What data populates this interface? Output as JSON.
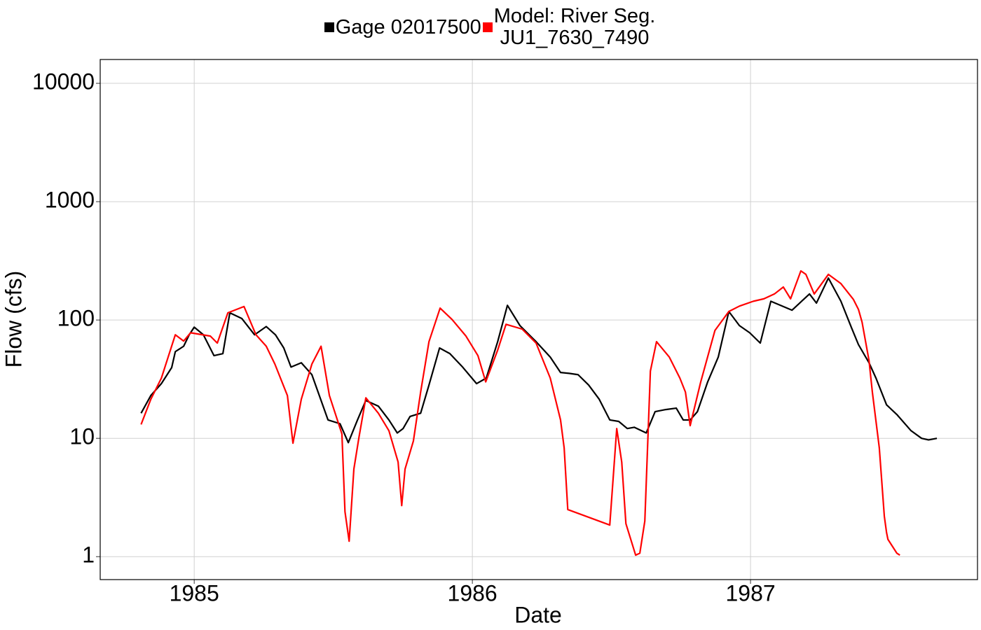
{
  "chart_data": {
    "type": "line",
    "x_label": "Date",
    "y_label": "Flow (cfs)",
    "log_y": true,
    "grid": true,
    "legend": "top",
    "xlim": [
      1984.662,
      1987.816
    ],
    "xticks": [
      1985,
      1986,
      1987
    ],
    "ylim": [
      0.64,
      15900
    ],
    "yticks": [
      1,
      10,
      100,
      1000,
      10000
    ],
    "series": [
      {
        "name": "Gage 02017500",
        "color": "#000000",
        "x": [
          1984.809,
          1984.844,
          1984.882,
          1984.919,
          1984.932,
          1984.962,
          1984.982,
          1985.0,
          1985.033,
          1985.071,
          1985.103,
          1985.128,
          1985.171,
          1985.217,
          1985.259,
          1985.292,
          1985.322,
          1985.348,
          1985.385,
          1985.423,
          1985.481,
          1985.524,
          1985.554,
          1985.587,
          1985.617,
          1985.662,
          1985.7,
          1985.73,
          1985.751,
          1985.776,
          1985.814,
          1985.844,
          1985.882,
          1985.919,
          1985.965,
          1986.015,
          1986.05,
          1986.091,
          1986.126,
          1986.171,
          1986.229,
          1986.28,
          1986.317,
          1986.348,
          1986.38,
          1986.418,
          1986.456,
          1986.494,
          1986.526,
          1986.557,
          1986.582,
          1986.625,
          1986.657,
          1986.695,
          1986.733,
          1986.758,
          1986.783,
          1986.809,
          1986.846,
          1986.884,
          1986.922,
          1986.96,
          1986.997,
          1987.035,
          1987.073,
          1987.149,
          1987.212,
          1987.237,
          1987.28,
          1987.325,
          1987.363,
          1987.388,
          1987.426,
          1987.451,
          1987.489,
          1987.526,
          1987.577,
          1987.615,
          1987.64,
          1987.67
        ],
        "values": [
          16.3,
          23,
          29,
          39.6,
          54,
          60,
          75,
          87,
          75,
          50,
          52,
          115,
          103,
          75,
          88,
          75,
          58,
          40,
          43.5,
          34.5,
          14.3,
          13.3,
          9.2,
          14.3,
          20.9,
          18.7,
          14.3,
          11.1,
          12.1,
          15.3,
          16.3,
          28.2,
          58,
          52,
          40,
          29,
          32.3,
          65.6,
          133,
          89.7,
          65.6,
          48.6,
          36,
          35.4,
          34.5,
          28.2,
          21.4,
          14.3,
          13.9,
          12.1,
          12.4,
          11.1,
          16.8,
          17.5,
          18,
          14.3,
          14.3,
          16.8,
          30,
          48.6,
          118,
          89.7,
          78,
          63.8,
          144,
          121,
          166,
          139,
          226,
          144,
          86,
          62,
          43.5,
          32.3,
          19.2,
          15.9,
          11.6,
          10,
          9.7,
          10
        ]
      },
      {
        "name": "Model: River Seg.\nJU1_7630_7490",
        "color": "#ff0000",
        "x": [
          1984.809,
          1984.844,
          1984.882,
          1984.932,
          1984.962,
          1984.987,
          1985.058,
          1985.083,
          1985.121,
          1985.179,
          1985.222,
          1985.259,
          1985.29,
          1985.335,
          1985.355,
          1985.385,
          1985.423,
          1985.456,
          1985.486,
          1985.531,
          1985.542,
          1985.557,
          1985.574,
          1985.592,
          1985.617,
          1985.662,
          1985.7,
          1985.733,
          1985.746,
          1985.758,
          1985.788,
          1985.814,
          1985.844,
          1985.884,
          1985.927,
          1985.977,
          1986.02,
          1986.048,
          1986.091,
          1986.121,
          1986.179,
          1986.229,
          1986.28,
          1986.317,
          1986.33,
          1986.343,
          1986.494,
          1986.519,
          1986.537,
          1986.552,
          1986.587,
          1986.602,
          1986.62,
          1986.64,
          1986.662,
          1986.708,
          1986.746,
          1986.766,
          1986.783,
          1986.821,
          1986.872,
          1986.922,
          1986.96,
          1987.01,
          1987.048,
          1987.086,
          1987.118,
          1987.144,
          1987.181,
          1987.199,
          1987.229,
          1987.28,
          1987.325,
          1987.37,
          1987.388,
          1987.401,
          1987.426,
          1987.438,
          1987.463,
          1987.481,
          1987.489,
          1987.494,
          1987.526,
          1987.537
        ],
        "values": [
          13.1,
          21.4,
          32.3,
          75,
          66.4,
          78,
          73.1,
          63.8,
          115,
          130,
          75,
          60,
          42.4,
          23,
          9.1,
          21.4,
          42.4,
          60,
          23,
          10.9,
          2.4,
          1.35,
          5.5,
          10.1,
          22,
          16.3,
          11.6,
          6.3,
          2.7,
          5.5,
          9.5,
          24.6,
          65.6,
          126,
          101,
          73.1,
          50,
          30,
          55.7,
          92,
          83.8,
          63.8,
          32.3,
          14.3,
          8.3,
          2.5,
          1.85,
          12.1,
          6.3,
          1.9,
          1.03,
          1.07,
          2.0,
          37,
          65.6,
          48.6,
          32.3,
          24.6,
          12.8,
          30,
          81.5,
          118,
          131,
          144,
          151,
          166,
          190,
          151,
          260,
          243,
          166,
          243,
          203,
          149,
          123,
          96,
          45.4,
          24.6,
          8.3,
          2.2,
          1.6,
          1.4,
          1.07,
          1.03
        ]
      }
    ]
  }
}
